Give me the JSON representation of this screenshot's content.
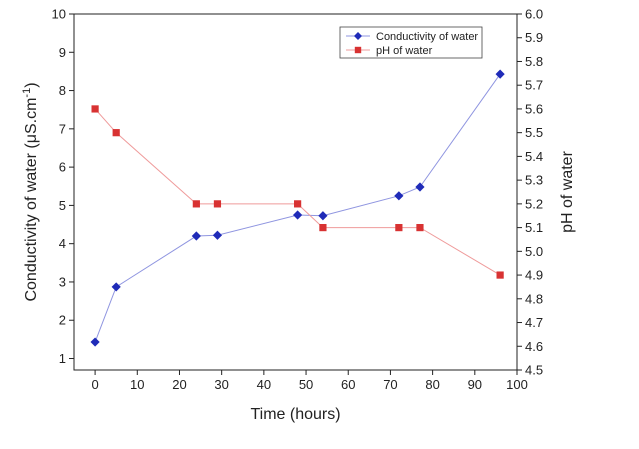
{
  "chart_data": {
    "type": "line",
    "x_axis": {
      "label": "Time (hours)",
      "range": [
        -5,
        100
      ],
      "ticks": [
        0,
        10,
        20,
        30,
        40,
        50,
        60,
        70,
        80,
        90,
        100
      ]
    },
    "y_left_axis": {
      "label_main": "Conductivity of water (",
      "label_unit": "μS.cm",
      "label_sup": "-1",
      "label_close": ")",
      "range": [
        0.7,
        10
      ],
      "ticks": [
        1,
        2,
        3,
        4,
        5,
        6,
        7,
        8,
        9,
        10
      ]
    },
    "y_right_axis": {
      "label": "pH of water",
      "range": [
        4.5,
        6.0
      ],
      "ticks": [
        4.5,
        4.6,
        4.7,
        4.8,
        4.9,
        5.0,
        5.1,
        5.2,
        5.3,
        5.4,
        5.5,
        5.6,
        5.7,
        5.8,
        5.9,
        6.0
      ]
    },
    "series": [
      {
        "name": "Conductivity of water",
        "axis": "left",
        "marker": "diamond",
        "color": "#1f2bb8",
        "line_color": "#8f95e0",
        "x": [
          0,
          5,
          24,
          29,
          48,
          54,
          72,
          77,
          96
        ],
        "y": [
          1.43,
          2.87,
          4.2,
          4.22,
          4.75,
          4.73,
          5.25,
          5.48,
          8.43
        ]
      },
      {
        "name": "pH of water",
        "axis": "right",
        "marker": "square",
        "color": "#d83232",
        "line_color": "#ef9b9b",
        "x": [
          0,
          5,
          24,
          29,
          48,
          54,
          72,
          77,
          96
        ],
        "y": [
          5.6,
          5.5,
          5.2,
          5.2,
          5.2,
          5.1,
          5.1,
          5.1,
          4.9
        ]
      }
    ],
    "legend": {
      "position": "top-right"
    },
    "grid": false
  }
}
